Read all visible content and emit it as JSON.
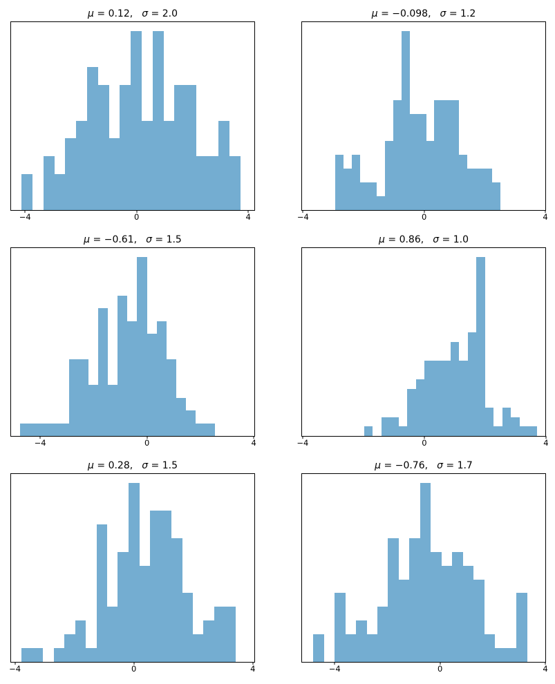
{
  "figure": {
    "background": "#ffffff",
    "bar_color": "#74add1",
    "axis_color": "#000000",
    "text_color": "#000000"
  },
  "chart_data": [
    {
      "type": "histogram",
      "title": "μ = 0.12,   σ = 2.0",
      "title_parts": {
        "mu_symbol": "μ",
        "mu_eq": " = 0.12,",
        "sigma_symbol": "σ",
        "sigma_eq": " = 2.0"
      },
      "mu": 0.12,
      "sigma": 2.0,
      "xlim": [
        -4.5,
        4.22
      ],
      "xticks": [
        {
          "value": -4,
          "label": "−4"
        },
        {
          "value": 0,
          "label": "0"
        },
        {
          "value": 4,
          "label": "4"
        }
      ],
      "bins": {
        "start": -4.13,
        "width": 0.392
      },
      "counts": [
        2,
        0,
        3,
        2,
        4,
        5,
        8,
        7,
        4,
        7,
        10,
        5,
        10,
        5,
        7,
        7,
        3,
        3,
        5,
        3
      ],
      "grid": false,
      "bar_top_fraction_of_axes": 0.952
    },
    {
      "type": "histogram",
      "title": "μ = −0.098,   σ = 1.2",
      "title_parts": {
        "mu_symbol": "μ",
        "mu_eq": " = −0.098,",
        "sigma_symbol": "σ",
        "sigma_eq": " = 1.2"
      },
      "mu": -0.098,
      "sigma": 1.2,
      "xlim": [
        -4.03,
        4.0
      ],
      "xticks": [
        {
          "value": -4,
          "label": "−4"
        },
        {
          "value": 0,
          "label": "0"
        },
        {
          "value": 4,
          "label": "4"
        }
      ],
      "bins": {
        "start": -2.94,
        "width": 0.273
      },
      "counts": [
        4,
        3,
        4,
        2,
        2,
        1,
        5,
        8,
        13,
        7,
        7,
        5,
        8,
        8,
        8,
        4,
        3,
        3,
        3,
        2
      ],
      "grid": false,
      "bar_top_fraction_of_axes": 0.952
    },
    {
      "type": "histogram",
      "title": "μ = −0.61,   σ = 1.5",
      "title_parts": {
        "mu_symbol": "μ",
        "mu_eq": " = −0.61,",
        "sigma_symbol": "σ",
        "sigma_eq": " = 1.5"
      },
      "mu": -0.61,
      "sigma": 1.5,
      "xlim": [
        -5.09,
        4.02
      ],
      "xticks": [
        {
          "value": -4,
          "label": "−4"
        },
        {
          "value": 0,
          "label": "0"
        },
        {
          "value": 4,
          "label": "4"
        }
      ],
      "bins": {
        "start": -4.75,
        "width": 0.365
      },
      "counts": [
        1,
        1,
        1,
        1,
        1,
        6,
        6,
        4,
        10,
        4,
        11,
        9,
        14,
        8,
        9,
        6,
        3,
        2,
        1,
        1
      ],
      "grid": false,
      "bar_top_fraction_of_axes": 0.952
    },
    {
      "type": "histogram",
      "title": "μ = 0.86,   σ = 1.0",
      "title_parts": {
        "mu_symbol": "μ",
        "mu_eq": " = 0.86,",
        "sigma_symbol": "σ",
        "sigma_eq": " = 1.0"
      },
      "mu": 0.86,
      "sigma": 1.0,
      "xlim": [
        -4.02,
        3.98
      ],
      "xticks": [
        {
          "value": -4,
          "label": "−4"
        },
        {
          "value": 0,
          "label": "0"
        },
        {
          "value": 4,
          "label": "4"
        }
      ],
      "bins": {
        "start": -1.98,
        "width": 0.284
      },
      "counts": [
        1,
        0,
        2,
        2,
        1,
        5,
        6,
        8,
        8,
        8,
        10,
        8,
        11,
        19,
        3,
        1,
        3,
        2,
        1,
        1
      ],
      "grid": false,
      "bar_top_fraction_of_axes": 0.952
    },
    {
      "type": "histogram",
      "title": "μ = 0.28,   σ = 1.5",
      "title_parts": {
        "mu_symbol": "μ",
        "mu_eq": " = 0.28,",
        "sigma_symbol": "σ",
        "sigma_eq": " = 1.5"
      },
      "mu": 0.28,
      "sigma": 1.5,
      "xlim": [
        -4.13,
        4.05
      ],
      "xticks": [
        {
          "value": -4,
          "label": "−4"
        },
        {
          "value": 0,
          "label": "0"
        },
        {
          "value": 4,
          "label": "4"
        }
      ],
      "bins": {
        "start": -3.78,
        "width": 0.36
      },
      "counts": [
        1,
        1,
        0,
        1,
        2,
        3,
        1,
        10,
        4,
        8,
        13,
        7,
        11,
        11,
        9,
        5,
        2,
        3,
        4,
        4
      ],
      "grid": false,
      "bar_top_fraction_of_axes": 0.952
    },
    {
      "type": "histogram",
      "title": "μ = −0.76,   σ = 1.7",
      "title_parts": {
        "mu_symbol": "μ",
        "mu_eq": " = −0.76,",
        "sigma_symbol": "σ",
        "sigma_eq": " = 1.7"
      },
      "mu": -0.76,
      "sigma": 1.7,
      "xlim": [
        -5.24,
        4.0
      ],
      "xticks": [
        {
          "value": -4,
          "label": "−4"
        },
        {
          "value": 0,
          "label": "0"
        },
        {
          "value": 4,
          "label": "4"
        }
      ],
      "bins": {
        "start": -4.82,
        "width": 0.406
      },
      "counts": [
        2,
        0,
        5,
        2,
        3,
        2,
        4,
        9,
        6,
        9,
        13,
        8,
        7,
        8,
        7,
        6,
        2,
        1,
        1,
        5
      ],
      "grid": false,
      "bar_top_fraction_of_axes": 0.952
    }
  ]
}
